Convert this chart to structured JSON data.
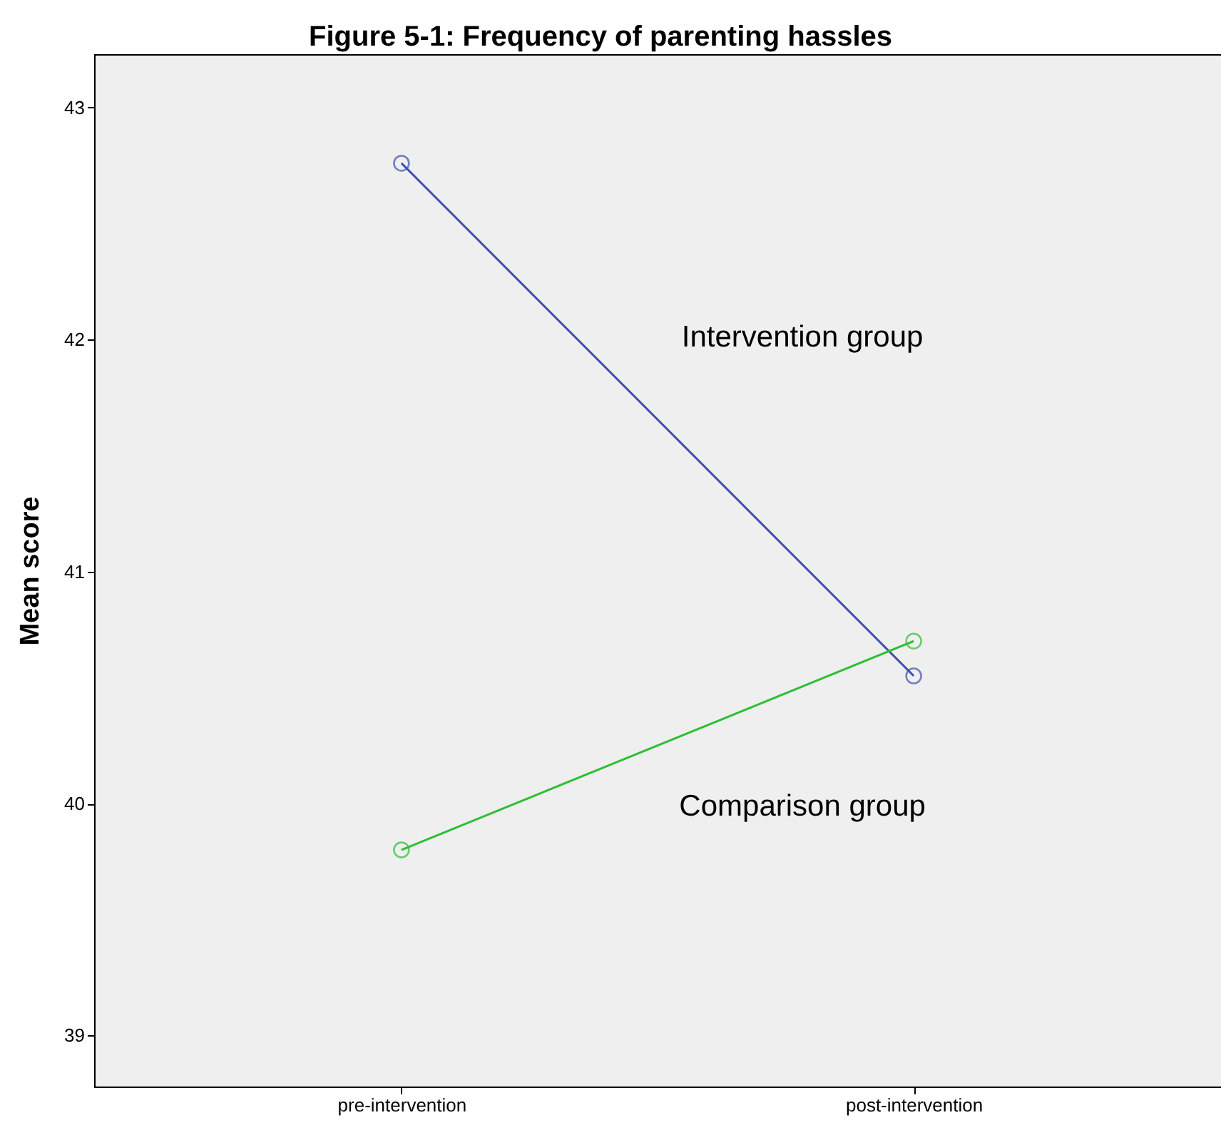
{
  "chart_data": {
    "type": "line",
    "title": "Figure 5-1: Frequency of parenting hassles",
    "ylabel": "Mean score",
    "categories": [
      "pre-intervention",
      "post-intervention"
    ],
    "series": [
      {
        "name": "Intervention group",
        "color": "#3f51b0",
        "values": [
          42.76,
          40.55
        ]
      },
      {
        "name": "Comparison group",
        "color": "#2ebf33",
        "values": [
          39.8,
          40.7
        ]
      }
    ],
    "ylim": [
      38.78,
      43.23
    ],
    "yticks": [
      39,
      40,
      41,
      42,
      43
    ],
    "grid": false,
    "legend": false,
    "marker": "circle",
    "line_style": "solid"
  }
}
